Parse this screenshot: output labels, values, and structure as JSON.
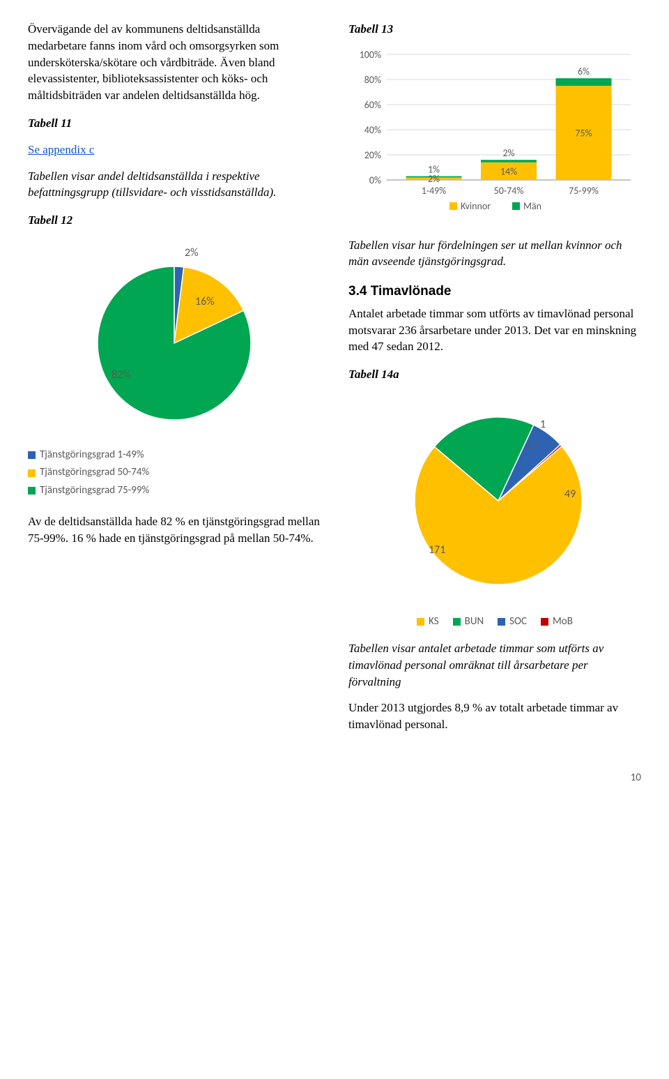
{
  "colors": {
    "blue": "#2d63b2",
    "orange": "#ffc000",
    "green": "#00a651",
    "red": "#c00000",
    "axis": "#888888",
    "grid": "#d9d9d9",
    "text_grey": "#5a5a5a"
  },
  "left": {
    "intro": "Övervägande del av kommunens deltidsanställda medarbetare fanns inom vård och omsorgsyrken som undersköterska/skötare och vårdbiträde. Även bland elevassistenter, biblioteksassistenter och köks- och måltidsbiträden var andelen deltidsanställda hög.",
    "tab11_title": "Tabell 11",
    "appendix_link": "Se appendix c",
    "tab11_desc": "Tabellen visar andel deltidsanställda i respektive befattningsgrupp (tillsvidare- och visstidsanställda).",
    "tab12_title": "Tabell 12",
    "pie12": {
      "type": "pie",
      "slices": [
        {
          "label": "2%",
          "value": 2,
          "color": "#2d63b2"
        },
        {
          "label": "16%",
          "value": 16,
          "color": "#ffc000"
        },
        {
          "label": "82%",
          "value": 82,
          "color": "#00a651"
        }
      ],
      "legend": [
        {
          "color": "#2d63b2",
          "text": "Tjänstgöringsgrad 1-49%"
        },
        {
          "color": "#ffc000",
          "text": "Tjänstgöringsgrad 50-74%"
        },
        {
          "color": "#00a651",
          "text": "Tjänstgöringsgrad 75-99%"
        }
      ]
    },
    "bottom": "Av de deltidsanställda hade 82 % en tjänstgöringsgrad mellan 75-99%. 16 % hade en tjänstgöringsgrad på mellan 50-74%."
  },
  "right": {
    "tab13_title": "Tabell 13",
    "bar13": {
      "type": "stacked-bar",
      "yticks": [
        "0%",
        "20%",
        "40%",
        "60%",
        "80%",
        "100%"
      ],
      "ylim": [
        0,
        100
      ],
      "categories": [
        "1-49%",
        "50-74%",
        "75-99%"
      ],
      "series": [
        {
          "name": "Kvinnor",
          "color": "#ffc000",
          "values": [
            2,
            14,
            75
          ],
          "labels": [
            "2%",
            "14%",
            "75%"
          ]
        },
        {
          "name": "Män",
          "color": "#00a651",
          "values": [
            1,
            2,
            6
          ],
          "labels": [
            "1%",
            "2%",
            "6%"
          ]
        }
      ],
      "bar_fill_base": "#ffc000",
      "bar_fill_top": "#00a651"
    },
    "tab13_desc": "Tabellen visar hur fördelningen ser ut mellan kvinnor och män avseende tjänstgöringsgrad.",
    "sec34_title": "3.4 Timavlönade",
    "sec34_body": "Antalet arbetade timmar som utförts av timavlönad personal motsvarar 236 årsarbetare under 2013. Det var en minskning med 47 sedan 2012.",
    "tab14a_title": "Tabell 14a",
    "pie14a": {
      "type": "pie",
      "slices": [
        {
          "label": "171",
          "value": 171,
          "color": "#ffc000"
        },
        {
          "label": "49",
          "value": 49,
          "color": "#00a651"
        },
        {
          "label": "15",
          "value": 15,
          "color": "#2d63b2"
        },
        {
          "label": "1",
          "value": 1,
          "color": "#c00000"
        }
      ],
      "legend": [
        {
          "color": "#ffc000",
          "text": "KS"
        },
        {
          "color": "#00a651",
          "text": "BUN"
        },
        {
          "color": "#2d63b2",
          "text": "SOC"
        },
        {
          "color": "#c00000",
          "text": "MoB"
        }
      ]
    },
    "tab14a_desc": "Tabellen visar antalet arbetade timmar som utförts av timavlönad personal omräknat till årsarbetare per förvaltning",
    "closing": "Under 2013 utgjordes 8,9 % av totalt arbetade timmar av timavlönad personal."
  },
  "page_num": "10"
}
